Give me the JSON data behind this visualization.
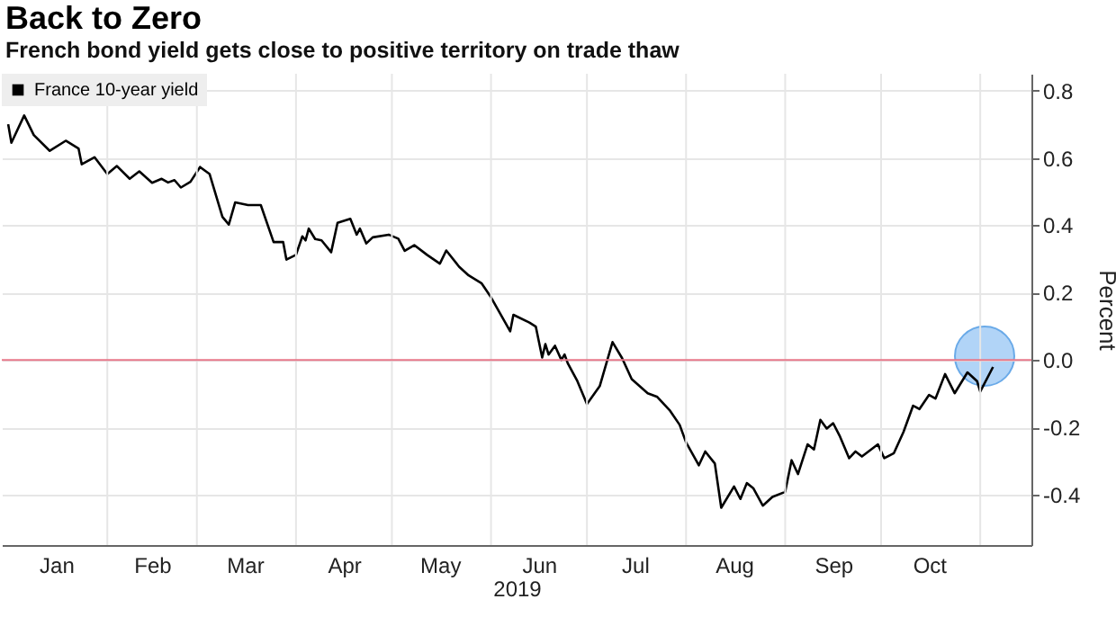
{
  "chart_data": {
    "type": "line",
    "title": "Back to Zero",
    "subtitle": "French bond yield gets close to positive territory on trade thaw",
    "xlabel": "2019",
    "ylabel": "Percent",
    "x": [
      "2019-01-01",
      "2019-01-02",
      "2019-01-06",
      "2019-01-09",
      "2019-01-14",
      "2019-01-19",
      "2019-01-23",
      "2019-01-24",
      "2019-01-28",
      "2019-02-01",
      "2019-02-04",
      "2019-02-08",
      "2019-02-11",
      "2019-02-15",
      "2019-02-18",
      "2019-02-20",
      "2019-02-22",
      "2019-02-24",
      "2019-02-27",
      "2019-03-02",
      "2019-03-05",
      "2019-03-09",
      "2019-03-11",
      "2019-03-13",
      "2019-03-17",
      "2019-03-21",
      "2019-03-25",
      "2019-03-28",
      "2019-03-29",
      "2019-04-01",
      "2019-04-03",
      "2019-04-04",
      "2019-04-05",
      "2019-04-07",
      "2019-04-09",
      "2019-04-12",
      "2019-04-14",
      "2019-04-18",
      "2019-04-20",
      "2019-04-21",
      "2019-04-23",
      "2019-04-25",
      "2019-04-30",
      "2019-05-03",
      "2019-05-05",
      "2019-05-08",
      "2019-05-12",
      "2019-05-16",
      "2019-05-18",
      "2019-05-22",
      "2019-05-25",
      "2019-05-29",
      "2019-06-01",
      "2019-06-07",
      "2019-06-08",
      "2019-06-13",
      "2019-06-15",
      "2019-06-17",
      "2019-06-18",
      "2019-06-19",
      "2019-06-21",
      "2019-06-23",
      "2019-06-24",
      "2019-06-25",
      "2019-06-28",
      "2019-07-01",
      "2019-07-05",
      "2019-07-09",
      "2019-07-12",
      "2019-07-15",
      "2019-07-20",
      "2019-07-23",
      "2019-07-27",
      "2019-07-30",
      "2019-08-01",
      "2019-08-05",
      "2019-08-07",
      "2019-08-10",
      "2019-08-12",
      "2019-08-16",
      "2019-08-18",
      "2019-08-20",
      "2019-08-22",
      "2019-08-25",
      "2019-08-28",
      "2019-09-01",
      "2019-09-03",
      "2019-09-05",
      "2019-09-08",
      "2019-09-10",
      "2019-09-12",
      "2019-09-14",
      "2019-09-16",
      "2019-09-18",
      "2019-09-21",
      "2019-09-23",
      "2019-09-25",
      "2019-09-30",
      "2019-10-02",
      "2019-10-05",
      "2019-10-08",
      "2019-10-11",
      "2019-10-13",
      "2019-10-16",
      "2019-10-18",
      "2019-10-21",
      "2019-10-24",
      "2019-10-28",
      "2019-10-31",
      "2019-11-01",
      "2019-11-05"
    ],
    "series": [
      {
        "name": "France 10-year yield",
        "color": "#000000",
        "values": [
          0.7,
          0.645,
          0.726,
          0.668,
          0.621,
          0.651,
          0.628,
          0.581,
          0.602,
          0.552,
          0.576,
          0.538,
          0.56,
          0.526,
          0.538,
          0.527,
          0.534,
          0.512,
          0.529,
          0.573,
          0.552,
          0.425,
          0.402,
          0.468,
          0.46,
          0.46,
          0.35,
          0.35,
          0.298,
          0.312,
          0.367,
          0.355,
          0.39,
          0.359,
          0.355,
          0.32,
          0.407,
          0.419,
          0.372,
          0.39,
          0.346,
          0.364,
          0.372,
          0.36,
          0.324,
          0.341,
          0.312,
          0.286,
          0.325,
          0.277,
          0.251,
          0.228,
          0.186,
          0.085,
          0.134,
          0.111,
          0.099,
          0.007,
          0.047,
          0.016,
          0.042,
          0.0,
          0.016,
          -0.01,
          -0.063,
          -0.131,
          -0.078,
          0.053,
          0.005,
          -0.057,
          -0.099,
          -0.11,
          -0.151,
          -0.193,
          -0.245,
          -0.313,
          -0.272,
          -0.308,
          -0.439,
          -0.376,
          -0.413,
          -0.366,
          -0.381,
          -0.433,
          -0.407,
          -0.392,
          -0.298,
          -0.339,
          -0.251,
          -0.266,
          -0.178,
          -0.204,
          -0.188,
          -0.225,
          -0.292,
          -0.272,
          -0.287,
          -0.251,
          -0.292,
          -0.277,
          -0.214,
          -0.136,
          -0.146,
          -0.104,
          -0.115,
          -0.042,
          -0.099,
          -0.037,
          -0.063,
          -0.094,
          -0.021
        ]
      }
    ],
    "xlim": [
      "2018-12-30",
      "2019-11-17"
    ],
    "xticks": [
      {
        "value": "2019-01-16",
        "label": "Jan"
      },
      {
        "value": "2019-02-01",
        "label": null
      },
      {
        "value": "2019-02-15",
        "label": "Feb"
      },
      {
        "value": "2019-03-01",
        "label": null
      },
      {
        "value": "2019-03-16",
        "label": "Mar"
      },
      {
        "value": "2019-04-01",
        "label": null
      },
      {
        "value": "2019-04-16",
        "label": "Apr"
      },
      {
        "value": "2019-05-01",
        "label": null
      },
      {
        "value": "2019-05-16",
        "label": "May"
      },
      {
        "value": "2019-06-01",
        "label": null
      },
      {
        "value": "2019-06-16",
        "label": "Jun"
      },
      {
        "value": "2019-07-01",
        "label": null
      },
      {
        "value": "2019-07-16",
        "label": "Jul"
      },
      {
        "value": "2019-08-01",
        "label": null
      },
      {
        "value": "2019-08-16",
        "label": "Aug"
      },
      {
        "value": "2019-09-01",
        "label": null
      },
      {
        "value": "2019-09-16",
        "label": "Sep"
      },
      {
        "value": "2019-10-01",
        "label": null
      },
      {
        "value": "2019-10-16",
        "label": "Oct"
      },
      {
        "value": "2019-11-01",
        "label": null
      }
    ],
    "ylim": [
      -0.55,
      0.85
    ],
    "yticks": [
      {
        "value": -0.4,
        "label": "-0.4"
      },
      {
        "value": -0.2,
        "label": "-0.2"
      },
      {
        "value": 0,
        "label": "0.0"
      },
      {
        "value": 0.2,
        "label": "0.2"
      },
      {
        "value": 0.4,
        "label": "0.4"
      },
      {
        "value": 0.6,
        "label": "0.6"
      },
      {
        "value": 0.8,
        "label": "0.8"
      }
    ],
    "ref_lines": [
      {
        "axis": "y",
        "value": 0,
        "color": "#e8788a"
      }
    ],
    "grid": true,
    "legend": "top left",
    "marker": "none",
    "line_style": "solid"
  }
}
